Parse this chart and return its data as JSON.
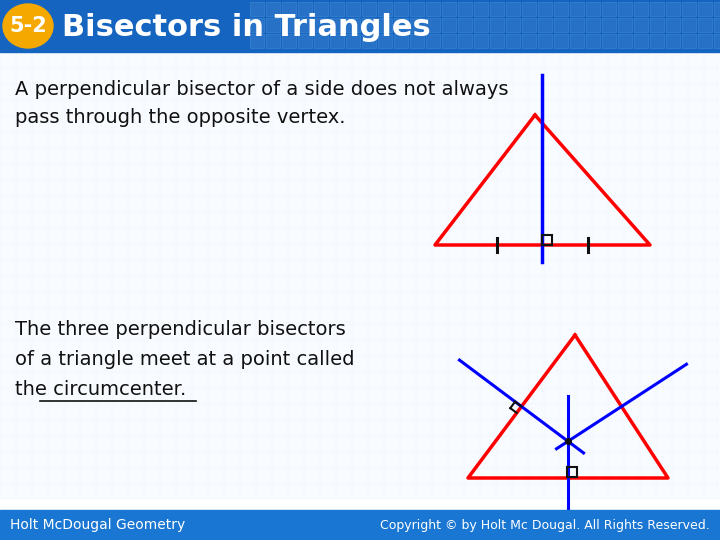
{
  "title": "5-2  Bisectors in Triangles",
  "header_bg": "#1565C0",
  "header_text_color": "#FFFFFF",
  "badge_color": "#F5A800",
  "badge_text": "5-2",
  "body_bg": "#FFFFFF",
  "footer_bg": "#1976D2",
  "footer_left": "Holt McDougal Geometry",
  "footer_right": "Copyright © by Holt Mc Dougal. All Rights Reserved.",
  "text1_line1": "A perpendicular bisector of a side does not always",
  "text1_line2": "pass through the opposite vertex.",
  "text2_line1": "The three perpendicular bisectors",
  "text2_line2": "of a triangle meet at a point called",
  "text2_line3": "the circumcenter.",
  "blue_line_color": "#0000FF",
  "black_color": "#000000",
  "red_color": "#FF0000"
}
